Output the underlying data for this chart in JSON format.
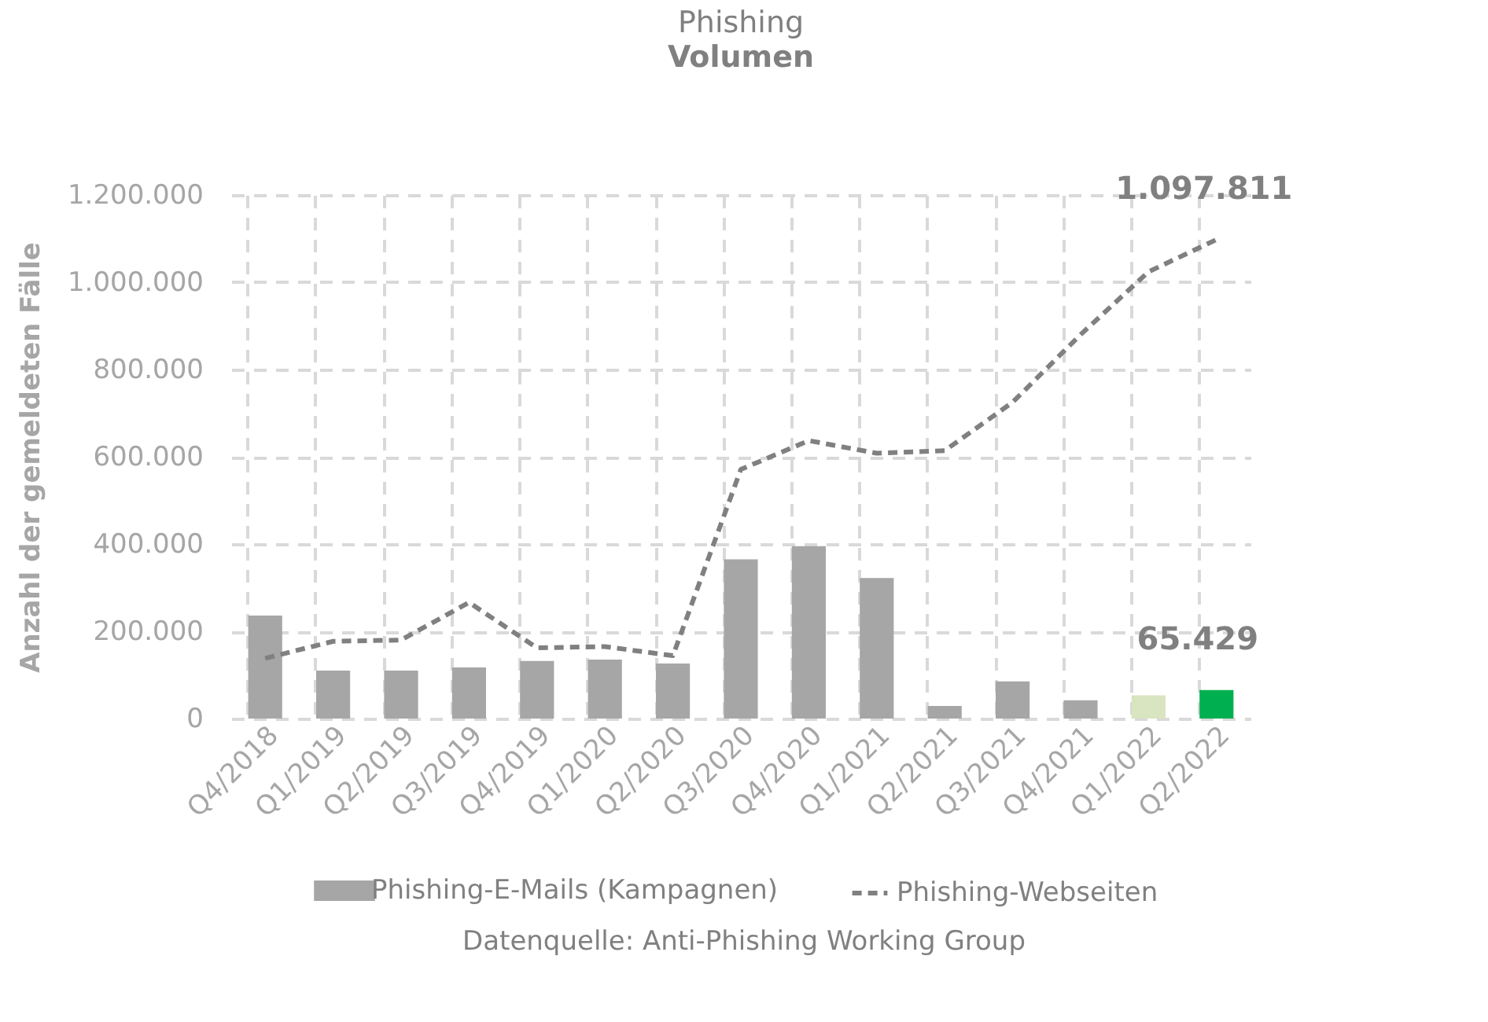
{
  "chart_data": {
    "type": "bar",
    "title": "Phishing",
    "subtitle": "Volumen",
    "ylabel": "Anzahl der gemeldeten Fälle",
    "categories": [
      "Q4/2018",
      "Q1/2019",
      "Q2/2019",
      "Q3/2019",
      "Q4/2019",
      "Q1/2020",
      "Q2/2020",
      "Q3/2020",
      "Q4/2020",
      "Q1/2021",
      "Q2/2021",
      "Q3/2021",
      "Q4/2021",
      "Q1/2022",
      "Q2/2022"
    ],
    "series": [
      {
        "name": "Phishing-E-Mails (Kampagnen)",
        "color": "#a6a6a6",
        "colors": [
          "#a6a6a6",
          "#a6a6a6",
          "#a6a6a6",
          "#a6a6a6",
          "#a6a6a6",
          "#a6a6a6",
          "#a6a6a6",
          "#a6a6a6",
          "#a6a6a6",
          "#a6a6a6",
          "#a6a6a6",
          "#a6a6a6",
          "#a6a6a6",
          "#d9e4c0",
          "#00b050"
        ],
        "values": [
          236000,
          110000,
          110000,
          117000,
          132000,
          135000,
          126000,
          365000,
          395000,
          322000,
          29000,
          85000,
          42000,
          53000,
          65429
        ],
        "value_labels": [
          null,
          null,
          null,
          null,
          null,
          null,
          null,
          null,
          null,
          null,
          null,
          null,
          null,
          null,
          "65.429"
        ]
      },
      {
        "name": "Phishing-Webseiten",
        "type": "line",
        "line_style": "dashed",
        "color": "#808080",
        "values": [
          138000,
          177000,
          180000,
          266000,
          162000,
          165000,
          144000,
          571000,
          637000,
          608000,
          614000,
          725000,
          880000,
          1024000,
          1097811
        ],
        "value_labels": [
          null,
          null,
          null,
          null,
          null,
          null,
          null,
          null,
          null,
          null,
          null,
          null,
          null,
          null,
          "1.097.811"
        ]
      }
    ],
    "ylim": [
      0,
      1200000
    ],
    "yticks": [
      0,
      {
        "value": 200000,
        "label": "200.000"
      },
      {
        "value": 400000,
        "label": "400.000"
      },
      {
        "value": 600000,
        "label": "600.000"
      },
      {
        "value": 800000,
        "label": "800.000"
      },
      {
        "value": 1000000,
        "label": "1.000.000"
      },
      {
        "value": 1200000,
        "label": "1.200.000"
      }
    ],
    "grid": true,
    "legend": "bottom",
    "annotations": [
      "Datenquelle: Anti-Phishing Working Group"
    ]
  }
}
